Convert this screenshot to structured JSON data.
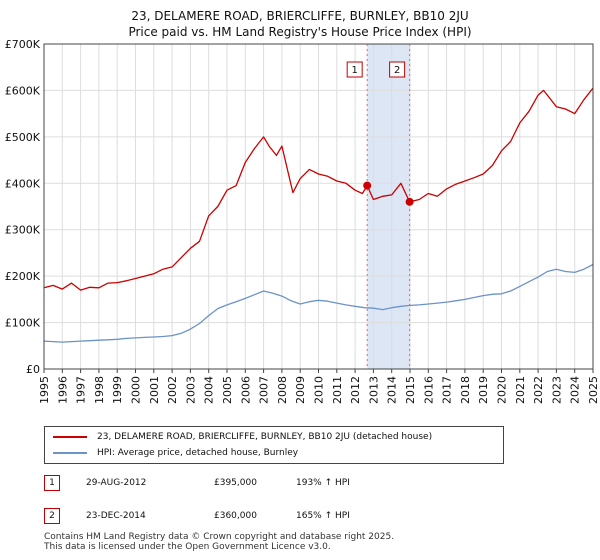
{
  "title_line1": "23, DELAMERE ROAD, BRIERCLIFFE, BURNLEY, BB10 2JU",
  "title_line2": "Price paid vs. HM Land Registry's House Price Index (HPI)",
  "legend": {
    "property_label": "23, DELAMERE ROAD, BRIERCLIFFE, BURNLEY, BB10 2JU (detached house)",
    "hpi_label": "HPI: Average price, detached house, Burnley",
    "property_color": "#cc0000",
    "hpi_color": "#6b93c8"
  },
  "transactions": [
    {
      "num": "1",
      "date": "29-AUG-2012",
      "price": "£395,000",
      "hpi_change": "193% ↑ HPI"
    },
    {
      "num": "2",
      "date": "23-DEC-2014",
      "price": "£360,000",
      "hpi_change": "165% ↑ HPI"
    }
  ],
  "footer_line1": "Contains HM Land Registry data © Crown copyright and database right 2025.",
  "footer_line2": "This data is licensed under the Open Government Licence v3.0.",
  "chart_data": {
    "type": "line",
    "xlim": [
      1995,
      2025
    ],
    "ylim": [
      0,
      700000
    ],
    "yticks": [
      0,
      100000,
      200000,
      300000,
      400000,
      500000,
      600000,
      700000
    ],
    "ytick_labels": [
      "£0",
      "£100K",
      "£200K",
      "£300K",
      "£400K",
      "£500K",
      "£600K",
      "£700K"
    ],
    "xticks": [
      1995,
      1996,
      1997,
      1998,
      1999,
      2000,
      2001,
      2002,
      2003,
      2004,
      2005,
      2006,
      2007,
      2008,
      2009,
      2010,
      2011,
      2012,
      2013,
      2014,
      2015,
      2016,
      2017,
      2018,
      2019,
      2020,
      2021,
      2022,
      2023,
      2024,
      2025
    ],
    "grid": true,
    "shaded_region": [
      2012.66,
      2014.98
    ],
    "series": [
      {
        "name": "23, DELAMERE ROAD, BRIERCLIFFE, BURNLEY, BB10 2JU (detached house)",
        "color": "#cc0000",
        "x": [
          1995,
          1995.5,
          1996,
          1996.5,
          1997,
          1997.5,
          1998,
          1998.5,
          1999,
          1999.5,
          2000,
          2000.5,
          2001,
          2001.5,
          2002,
          2002.5,
          2003,
          2003.5,
          2004,
          2004.5,
          2005,
          2005.5,
          2006,
          2006.5,
          2007,
          2007.3,
          2007.7,
          2008,
          2008.3,
          2008.6,
          2009,
          2009.5,
          2010,
          2010.5,
          2011,
          2011.5,
          2012,
          2012.4,
          2012.66,
          2013,
          2013.5,
          2014,
          2014.5,
          2014.98,
          2015.5,
          2016,
          2016.5,
          2017,
          2017.5,
          2018,
          2018.5,
          2019,
          2019.5,
          2020,
          2020.5,
          2021,
          2021.5,
          2022,
          2022.3,
          2022.6,
          2023,
          2023.5,
          2024,
          2024.5,
          2025
        ],
        "values": [
          175000,
          180000,
          172000,
          185000,
          170000,
          176000,
          175000,
          185000,
          186000,
          190000,
          195000,
          200000,
          205000,
          215000,
          220000,
          240000,
          260000,
          275000,
          330000,
          350000,
          385000,
          395000,
          445000,
          475000,
          500000,
          480000,
          460000,
          480000,
          430000,
          380000,
          410000,
          430000,
          420000,
          415000,
          405000,
          400000,
          385000,
          378000,
          395000,
          365000,
          372000,
          375000,
          400000,
          360000,
          365000,
          378000,
          372000,
          388000,
          398000,
          405000,
          412000,
          420000,
          438000,
          470000,
          490000,
          530000,
          555000,
          590000,
          600000,
          585000,
          565000,
          560000,
          550000,
          580000,
          605000
        ]
      },
      {
        "name": "HPI: Average price, detached house, Burnley",
        "color": "#6b93c8",
        "x": [
          1995,
          1995.5,
          1996,
          1996.5,
          1997,
          1997.5,
          1998,
          1998.5,
          1999,
          1999.5,
          2000,
          2000.5,
          2001,
          2001.5,
          2002,
          2002.5,
          2003,
          2003.5,
          2004,
          2004.5,
          2005,
          2005.5,
          2006,
          2006.5,
          2007,
          2007.5,
          2008,
          2008.5,
          2009,
          2009.5,
          2010,
          2010.5,
          2011,
          2011.5,
          2012,
          2012.5,
          2013,
          2013.5,
          2014,
          2014.5,
          2015,
          2015.5,
          2016,
          2016.5,
          2017,
          2017.5,
          2018,
          2018.5,
          2019,
          2019.5,
          2020,
          2020.5,
          2021,
          2021.5,
          2022,
          2022.5,
          2023,
          2023.5,
          2024,
          2024.5,
          2025
        ],
        "values": [
          60000,
          59000,
          58000,
          59000,
          60000,
          61000,
          62000,
          63000,
          64000,
          66000,
          67000,
          68000,
          69000,
          70000,
          72000,
          77000,
          86000,
          98000,
          115000,
          130000,
          138000,
          145000,
          152000,
          160000,
          168000,
          163000,
          157000,
          147000,
          140000,
          145000,
          148000,
          146000,
          142000,
          138000,
          135000,
          132000,
          131000,
          128000,
          132000,
          135000,
          137000,
          138000,
          140000,
          142000,
          144000,
          147000,
          150000,
          154000,
          158000,
          161000,
          162000,
          168000,
          178000,
          188000,
          198000,
          210000,
          215000,
          210000,
          208000,
          215000,
          225000
        ]
      }
    ],
    "markers": [
      {
        "label": "1",
        "x": 2012.66,
        "value": 395000
      },
      {
        "label": "2",
        "x": 2014.98,
        "value": 360000
      }
    ]
  }
}
